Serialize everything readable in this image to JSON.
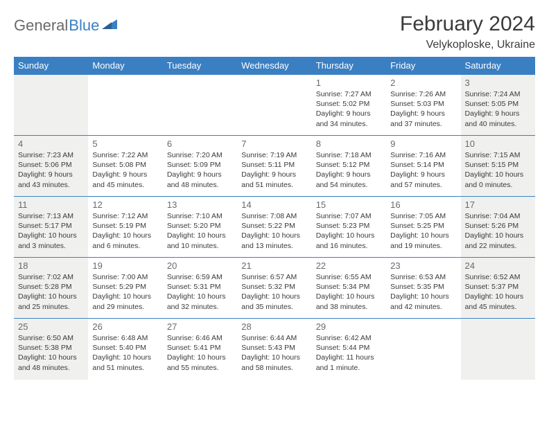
{
  "logo": {
    "part1": "General",
    "part2": "Blue"
  },
  "title": "February 2024",
  "location": "Velykoploske, Ukraine",
  "colors": {
    "header_bg": "#3a7fc2",
    "header_text": "#ffffff",
    "border": "#3a7fc2",
    "daynum": "#6a6a6a",
    "body_text": "#3a3a3a",
    "weekend_bg": "#f0f0ef",
    "logo_gray": "#6a6a6a",
    "logo_blue": "#3a7fc2"
  },
  "fonts": {
    "title_size": 30,
    "location_size": 16,
    "header_size": 13,
    "daynum_size": 13,
    "info_size": 10.5
  },
  "weekdays": [
    "Sunday",
    "Monday",
    "Tuesday",
    "Wednesday",
    "Thursday",
    "Friday",
    "Saturday"
  ],
  "weeks": [
    [
      {
        "day": "",
        "sunrise": "",
        "sunset": "",
        "daylight": "",
        "weekend": true
      },
      {
        "day": "",
        "sunrise": "",
        "sunset": "",
        "daylight": ""
      },
      {
        "day": "",
        "sunrise": "",
        "sunset": "",
        "daylight": ""
      },
      {
        "day": "",
        "sunrise": "",
        "sunset": "",
        "daylight": ""
      },
      {
        "day": "1",
        "sunrise": "Sunrise: 7:27 AM",
        "sunset": "Sunset: 5:02 PM",
        "daylight": "Daylight: 9 hours and 34 minutes."
      },
      {
        "day": "2",
        "sunrise": "Sunrise: 7:26 AM",
        "sunset": "Sunset: 5:03 PM",
        "daylight": "Daylight: 9 hours and 37 minutes."
      },
      {
        "day": "3",
        "sunrise": "Sunrise: 7:24 AM",
        "sunset": "Sunset: 5:05 PM",
        "daylight": "Daylight: 9 hours and 40 minutes.",
        "weekend": true
      }
    ],
    [
      {
        "day": "4",
        "sunrise": "Sunrise: 7:23 AM",
        "sunset": "Sunset: 5:06 PM",
        "daylight": "Daylight: 9 hours and 43 minutes.",
        "weekend": true
      },
      {
        "day": "5",
        "sunrise": "Sunrise: 7:22 AM",
        "sunset": "Sunset: 5:08 PM",
        "daylight": "Daylight: 9 hours and 45 minutes."
      },
      {
        "day": "6",
        "sunrise": "Sunrise: 7:20 AM",
        "sunset": "Sunset: 5:09 PM",
        "daylight": "Daylight: 9 hours and 48 minutes."
      },
      {
        "day": "7",
        "sunrise": "Sunrise: 7:19 AM",
        "sunset": "Sunset: 5:11 PM",
        "daylight": "Daylight: 9 hours and 51 minutes."
      },
      {
        "day": "8",
        "sunrise": "Sunrise: 7:18 AM",
        "sunset": "Sunset: 5:12 PM",
        "daylight": "Daylight: 9 hours and 54 minutes."
      },
      {
        "day": "9",
        "sunrise": "Sunrise: 7:16 AM",
        "sunset": "Sunset: 5:14 PM",
        "daylight": "Daylight: 9 hours and 57 minutes."
      },
      {
        "day": "10",
        "sunrise": "Sunrise: 7:15 AM",
        "sunset": "Sunset: 5:15 PM",
        "daylight": "Daylight: 10 hours and 0 minutes.",
        "weekend": true
      }
    ],
    [
      {
        "day": "11",
        "sunrise": "Sunrise: 7:13 AM",
        "sunset": "Sunset: 5:17 PM",
        "daylight": "Daylight: 10 hours and 3 minutes.",
        "weekend": true
      },
      {
        "day": "12",
        "sunrise": "Sunrise: 7:12 AM",
        "sunset": "Sunset: 5:19 PM",
        "daylight": "Daylight: 10 hours and 6 minutes."
      },
      {
        "day": "13",
        "sunrise": "Sunrise: 7:10 AM",
        "sunset": "Sunset: 5:20 PM",
        "daylight": "Daylight: 10 hours and 10 minutes."
      },
      {
        "day": "14",
        "sunrise": "Sunrise: 7:08 AM",
        "sunset": "Sunset: 5:22 PM",
        "daylight": "Daylight: 10 hours and 13 minutes."
      },
      {
        "day": "15",
        "sunrise": "Sunrise: 7:07 AM",
        "sunset": "Sunset: 5:23 PM",
        "daylight": "Daylight: 10 hours and 16 minutes."
      },
      {
        "day": "16",
        "sunrise": "Sunrise: 7:05 AM",
        "sunset": "Sunset: 5:25 PM",
        "daylight": "Daylight: 10 hours and 19 minutes."
      },
      {
        "day": "17",
        "sunrise": "Sunrise: 7:04 AM",
        "sunset": "Sunset: 5:26 PM",
        "daylight": "Daylight: 10 hours and 22 minutes.",
        "weekend": true
      }
    ],
    [
      {
        "day": "18",
        "sunrise": "Sunrise: 7:02 AM",
        "sunset": "Sunset: 5:28 PM",
        "daylight": "Daylight: 10 hours and 25 minutes.",
        "weekend": true
      },
      {
        "day": "19",
        "sunrise": "Sunrise: 7:00 AM",
        "sunset": "Sunset: 5:29 PM",
        "daylight": "Daylight: 10 hours and 29 minutes."
      },
      {
        "day": "20",
        "sunrise": "Sunrise: 6:59 AM",
        "sunset": "Sunset: 5:31 PM",
        "daylight": "Daylight: 10 hours and 32 minutes."
      },
      {
        "day": "21",
        "sunrise": "Sunrise: 6:57 AM",
        "sunset": "Sunset: 5:32 PM",
        "daylight": "Daylight: 10 hours and 35 minutes."
      },
      {
        "day": "22",
        "sunrise": "Sunrise: 6:55 AM",
        "sunset": "Sunset: 5:34 PM",
        "daylight": "Daylight: 10 hours and 38 minutes."
      },
      {
        "day": "23",
        "sunrise": "Sunrise: 6:53 AM",
        "sunset": "Sunset: 5:35 PM",
        "daylight": "Daylight: 10 hours and 42 minutes."
      },
      {
        "day": "24",
        "sunrise": "Sunrise: 6:52 AM",
        "sunset": "Sunset: 5:37 PM",
        "daylight": "Daylight: 10 hours and 45 minutes.",
        "weekend": true
      }
    ],
    [
      {
        "day": "25",
        "sunrise": "Sunrise: 6:50 AM",
        "sunset": "Sunset: 5:38 PM",
        "daylight": "Daylight: 10 hours and 48 minutes.",
        "weekend": true
      },
      {
        "day": "26",
        "sunrise": "Sunrise: 6:48 AM",
        "sunset": "Sunset: 5:40 PM",
        "daylight": "Daylight: 10 hours and 51 minutes."
      },
      {
        "day": "27",
        "sunrise": "Sunrise: 6:46 AM",
        "sunset": "Sunset: 5:41 PM",
        "daylight": "Daylight: 10 hours and 55 minutes."
      },
      {
        "day": "28",
        "sunrise": "Sunrise: 6:44 AM",
        "sunset": "Sunset: 5:43 PM",
        "daylight": "Daylight: 10 hours and 58 minutes."
      },
      {
        "day": "29",
        "sunrise": "Sunrise: 6:42 AM",
        "sunset": "Sunset: 5:44 PM",
        "daylight": "Daylight: 11 hours and 1 minute."
      },
      {
        "day": "",
        "sunrise": "",
        "sunset": "",
        "daylight": ""
      },
      {
        "day": "",
        "sunrise": "",
        "sunset": "",
        "daylight": "",
        "weekend": true
      }
    ]
  ]
}
